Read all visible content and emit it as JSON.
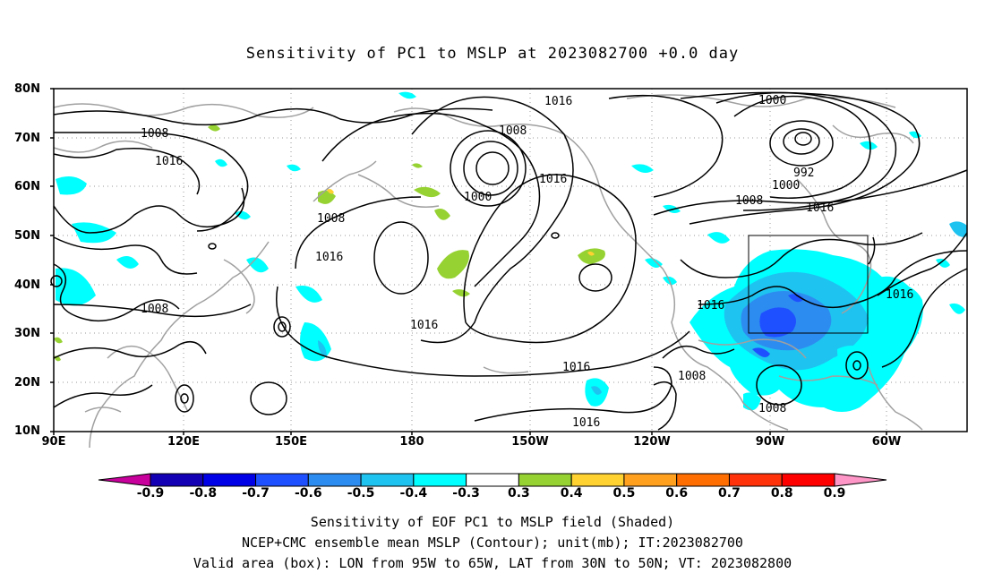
{
  "title": "Sensitivity of PC1 to MSLP at 2023082700 +0.0 day",
  "lat_labels": [
    "80N",
    "70N",
    "60N",
    "50N",
    "40N",
    "30N",
    "20N",
    "10N"
  ],
  "lon_labels": [
    "90E",
    "120E",
    "150E",
    "180",
    "150W",
    "120W",
    "90W",
    "60W"
  ],
  "colorbar": {
    "labels": [
      "-0.9",
      "-0.8",
      "-0.7",
      "-0.6",
      "-0.5",
      "-0.4",
      "-0.3",
      "0.3",
      "0.4",
      "0.5",
      "0.6",
      "0.7",
      "0.8",
      "0.9"
    ],
    "colors": [
      "#c8009c",
      "#1400b4",
      "#0000e6",
      "#1e50ff",
      "#2d8cf0",
      "#1ec3f0",
      "#00ffff",
      "#ffffff",
      "#96d232",
      "#ffd232",
      "#ffa01e",
      "#ff6e00",
      "#ff320a",
      "#ff0000",
      "#ff96c8"
    ]
  },
  "contour_labels": [
    "1016",
    "1008",
    "1000",
    "1016",
    "1008",
    "1016",
    "1000",
    "992",
    "1000",
    "1008",
    "1016",
    "1008",
    "1016",
    "1016",
    "1016",
    "1016",
    "1008",
    "1008",
    "1016",
    "1008"
  ],
  "shading_colors": {
    "cyan": "#00ffff",
    "lightblue": "#1ec3f0",
    "blue": "#2d8cf0",
    "deepblue": "#1e50ff",
    "green": "#96d232",
    "yellow": "#ffd232"
  },
  "footer": {
    "line1": "Sensitivity of EOF PC1 to MSLP field (Shaded)",
    "line2": "NCEP+CMC ensemble mean MSLP (Contour); unit(mb); IT:2023082700",
    "line3": "Valid area (box): LON from 95W to 65W, LAT from 30N to 50N; VT: 2023082800"
  }
}
